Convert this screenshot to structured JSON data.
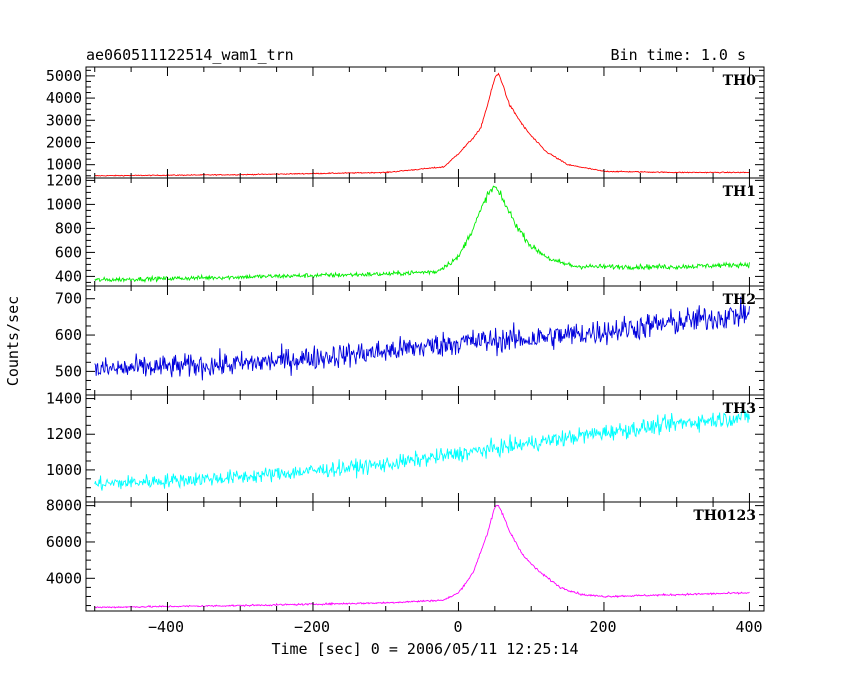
{
  "header": {
    "title": "ae060511122514_wam1_trn",
    "bin_time": "Bin time: 1.0 s"
  },
  "axes": {
    "xlabel": "Time [sec] 0 = 2006/05/11 12:25:14",
    "ylabel": "Counts/sec",
    "x_ticks": [
      "−400",
      "−200",
      "0",
      "200",
      "400"
    ]
  },
  "chart_data": {
    "type": "line",
    "xlabel": "Time [sec] 0 = 2006/05/11 12:25:14",
    "ylabel": "Counts/sec",
    "xlim": [
      -512,
      420
    ],
    "x_range": [
      -500,
      400
    ],
    "bin": 1.0,
    "grid": false,
    "panels": [
      {
        "name": "TH0",
        "color": "#ff0000",
        "ylim": [
          400,
          5400
        ],
        "y_ticks": [
          1000,
          2000,
          3000,
          4000,
          5000
        ],
        "tick_labels": [
          "1000",
          "2000",
          "3000",
          "4000",
          "5000"
        ],
        "x": [
          -500,
          -300,
          -100,
          -20,
          0,
          20,
          30,
          40,
          50,
          55,
          60,
          70,
          90,
          100,
          120,
          150,
          200,
          300,
          400
        ],
        "y": [
          500,
          550,
          650,
          900,
          1500,
          2200,
          2600,
          3700,
          4900,
          5100,
          4700,
          3700,
          2700,
          2300,
          1600,
          1000,
          700,
          650,
          650
        ],
        "noise": 20
      },
      {
        "name": "TH1",
        "color": "#00ee00",
        "ylim": [
          320,
          1220
        ],
        "y_ticks": [
          400,
          600,
          800,
          1000,
          1200
        ],
        "tick_labels": [
          "400",
          "600",
          "800",
          "1000",
          "1200"
        ],
        "x": [
          -500,
          -300,
          -100,
          -30,
          0,
          20,
          40,
          50,
          60,
          80,
          100,
          130,
          160,
          200,
          300,
          400
        ],
        "y": [
          370,
          395,
          420,
          440,
          560,
          800,
          1080,
          1150,
          1050,
          820,
          650,
          530,
          485,
          480,
          480,
          500
        ],
        "noise": 18
      },
      {
        "name": "TH2",
        "color": "#0000dd",
        "ylim": [
          435,
          735
        ],
        "y_ticks": [
          500,
          600,
          700
        ],
        "tick_labels": [
          "500",
          "600",
          "700"
        ],
        "x": [
          -500,
          -300,
          -100,
          0,
          100,
          200,
          300,
          400
        ],
        "y": [
          505,
          520,
          555,
          580,
          590,
          610,
          635,
          660
        ],
        "noise": 32
      },
      {
        "name": "TH3",
        "color": "#00ffff",
        "ylim": [
          820,
          1420
        ],
        "y_ticks": [
          1000,
          1200,
          1400
        ],
        "tick_labels": [
          "1000",
          "1200",
          "1400"
        ],
        "x": [
          -500,
          -300,
          -100,
          0,
          100,
          200,
          300,
          400
        ],
        "y": [
          920,
          960,
          1030,
          1090,
          1150,
          1210,
          1260,
          1300
        ],
        "noise": 40
      },
      {
        "name": "TH0123",
        "color": "#ff00ff",
        "ylim": [
          2200,
          8200
        ],
        "y_ticks": [
          4000,
          6000,
          8000
        ],
        "tick_labels": [
          "4000",
          "6000",
          "8000"
        ],
        "x": [
          -500,
          -300,
          -100,
          -20,
          0,
          20,
          40,
          50,
          55,
          60,
          70,
          90,
          110,
          140,
          170,
          200,
          300,
          400
        ],
        "y": [
          2400,
          2500,
          2650,
          2800,
          3200,
          4300,
          6500,
          7900,
          8000,
          7600,
          6600,
          5200,
          4400,
          3500,
          3100,
          3000,
          3100,
          3200
        ],
        "noise": 45
      }
    ]
  }
}
